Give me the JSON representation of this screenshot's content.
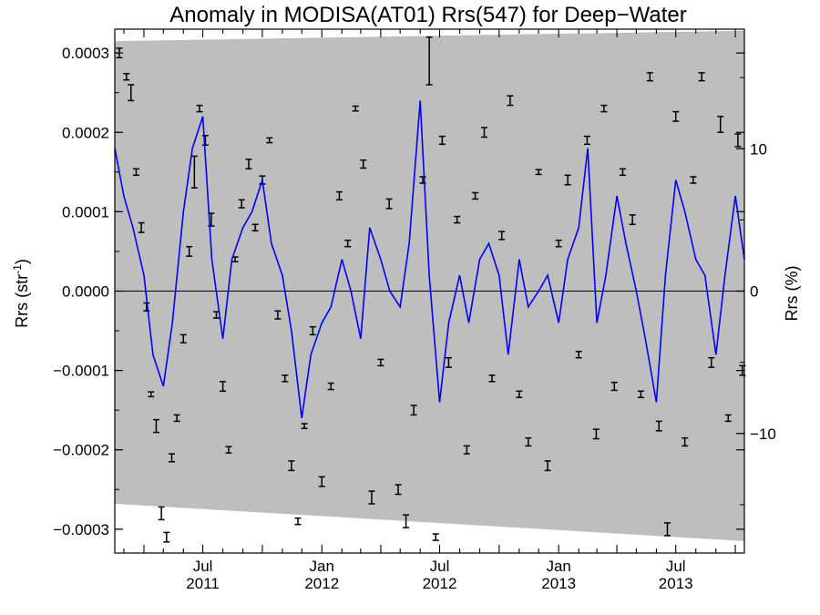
{
  "chart_data": {
    "type": "line",
    "title": "Anomaly in MODISA(AT01) Rrs(547) for Deep−Water",
    "ylabel_base": "Rrs (str",
    "ylabel_sup": "-1",
    "ylabel_close": ")",
    "y2label": "Rrs (%)",
    "xlim": [
      "2011-02-15",
      "2013-10-15"
    ],
    "ylim": [
      -0.00033,
      0.00033
    ],
    "y2lim": [
      -18.4,
      18.4
    ],
    "y_ticks": [
      {
        "value": 0.0003,
        "label": "0.0003"
      },
      {
        "value": 0.0002,
        "label": "0.0002"
      },
      {
        "value": 0.0001,
        "label": "0.0001"
      },
      {
        "value": 0.0,
        "label": "0.0000"
      },
      {
        "value": -0.0001,
        "label": "−0.0001"
      },
      {
        "value": -0.0002,
        "label": "−0.0002"
      },
      {
        "value": -0.0003,
        "label": "−0.0003"
      }
    ],
    "y2_ticks": [
      {
        "value": 10,
        "label": "10"
      },
      {
        "value": 0,
        "label": "0"
      },
      {
        "value": -10,
        "label": "−10"
      }
    ],
    "x_ticks": [
      {
        "date": "2011-07-01",
        "line1": "Jul",
        "line2": "2011"
      },
      {
        "date": "2012-01-01",
        "line1": "Jan",
        "line2": "2012"
      },
      {
        "date": "2012-07-01",
        "line1": "Jul",
        "line2": "2012"
      },
      {
        "date": "2013-01-01",
        "line1": "Jan",
        "line2": "2013"
      },
      {
        "date": "2013-07-01",
        "line1": "Jul",
        "line2": "2013"
      }
    ],
    "envelope": {
      "upper": [
        [
          "2011-02-15",
          0.000315
        ],
        [
          "2013-10-15",
          0.000328
        ]
      ],
      "lower": [
        [
          "2011-02-15",
          -0.000268
        ],
        [
          "2013-10-15",
          -0.000315
        ]
      ],
      "color": "#bebebe"
    },
    "series": [
      {
        "kind": "line",
        "color": "#0000ff",
        "x": [
          "2011-02-15",
          "2011-03-01",
          "2011-03-15",
          "2011-04-01",
          "2011-04-15",
          "2011-05-01",
          "2011-05-15",
          "2011-06-01",
          "2011-06-15",
          "2011-07-01",
          "2011-07-15",
          "2011-08-01",
          "2011-08-15",
          "2011-09-01",
          "2011-09-15",
          "2011-10-01",
          "2011-10-15",
          "2011-11-01",
          "2011-11-15",
          "2011-12-01",
          "2011-12-15",
          "2012-01-01",
          "2012-01-15",
          "2012-02-01",
          "2012-02-15",
          "2012-03-01",
          "2012-03-15",
          "2012-04-01",
          "2012-04-15",
          "2012-05-01",
          "2012-05-15",
          "2012-06-01",
          "2012-06-15",
          "2012-07-01",
          "2012-07-15",
          "2012-08-01",
          "2012-08-15",
          "2012-09-01",
          "2012-09-15",
          "2012-10-01",
          "2012-10-15",
          "2012-11-01",
          "2012-11-15",
          "2012-12-01",
          "2012-12-15",
          "2013-01-01",
          "2013-01-15",
          "2013-02-01",
          "2013-02-15",
          "2013-03-01",
          "2013-03-15",
          "2013-04-01",
          "2013-04-15",
          "2013-05-01",
          "2013-05-15",
          "2013-06-01",
          "2013-06-15",
          "2013-07-01",
          "2013-07-15",
          "2013-08-01",
          "2013-08-15",
          "2013-09-01",
          "2013-09-15",
          "2013-10-01",
          "2013-10-15"
        ],
        "y": [
          0.00018,
          0.00012,
          8e-05,
          2e-05,
          -8e-05,
          -0.00012,
          -4e-05,
          0.0001,
          0.00018,
          0.00022,
          4e-05,
          -6e-05,
          4e-05,
          8e-05,
          0.0001,
          0.00014,
          6e-05,
          2e-05,
          -5e-05,
          -0.00016,
          -8e-05,
          -4e-05,
          -2e-05,
          4e-05,
          0.0,
          -6e-05,
          8e-05,
          4e-05,
          0.0,
          -2e-05,
          6e-05,
          0.00024,
          2e-05,
          -0.00014,
          -4e-05,
          2e-05,
          -4e-05,
          4e-05,
          6e-05,
          2e-05,
          -8e-05,
          4e-05,
          -2e-05,
          0.0,
          2e-05,
          -4e-05,
          4e-05,
          8e-05,
          0.00018,
          -4e-05,
          2e-05,
          0.00012,
          6e-05,
          0.0,
          -6e-05,
          -0.00014,
          2e-05,
          0.00014,
          0.0001,
          4e-05,
          2e-05,
          -8e-05,
          2e-05,
          0.00012,
          4e-05
        ]
      },
      {
        "kind": "errorbar",
        "color": "#000000",
        "points": [
          [
            "2011-02-22",
            0.0003,
            6e-06
          ],
          [
            "2011-03-05",
            0.00027,
            4e-06
          ],
          [
            "2011-03-12",
            0.00025,
            1e-05
          ],
          [
            "2011-03-20",
            0.00015,
            4e-06
          ],
          [
            "2011-03-28",
            8e-05,
            6e-06
          ],
          [
            "2011-04-05",
            -2e-05,
            5e-06
          ],
          [
            "2011-04-12",
            -0.00013,
            3e-06
          ],
          [
            "2011-04-20",
            -0.00017,
            8e-06
          ],
          [
            "2011-04-28",
            -0.00028,
            8e-06
          ],
          [
            "2011-05-06",
            -0.00031,
            6e-06
          ],
          [
            "2011-05-14",
            -0.00021,
            5e-06
          ],
          [
            "2011-05-22",
            -0.00016,
            4e-06
          ],
          [
            "2011-06-01",
            -6e-05,
            5e-06
          ],
          [
            "2011-06-10",
            5e-05,
            6e-06
          ],
          [
            "2011-06-18",
            0.00015,
            2e-05
          ],
          [
            "2011-06-26",
            0.00023,
            4e-06
          ],
          [
            "2011-07-05",
            0.00019,
            6e-06
          ],
          [
            "2011-07-14",
            9e-05,
            8e-06
          ],
          [
            "2011-07-22",
            -3e-05,
            4e-06
          ],
          [
            "2011-08-01",
            -0.00012,
            6e-06
          ],
          [
            "2011-08-10",
            -0.0002,
            4e-06
          ],
          [
            "2011-08-20",
            4e-05,
            3e-06
          ],
          [
            "2011-08-30",
            0.00011,
            5e-06
          ],
          [
            "2011-09-10",
            0.00016,
            6e-06
          ],
          [
            "2011-09-20",
            8e-05,
            4e-06
          ],
          [
            "2011-10-01",
            0.00014,
            5e-06
          ],
          [
            "2011-10-12",
            0.00019,
            3e-06
          ],
          [
            "2011-10-25",
            -3e-05,
            5e-06
          ],
          [
            "2011-11-05",
            -0.00011,
            4e-06
          ],
          [
            "2011-11-15",
            -0.00022,
            6e-06
          ],
          [
            "2011-11-25",
            -0.00029,
            4e-06
          ],
          [
            "2011-12-05",
            -0.00017,
            3e-06
          ],
          [
            "2011-12-18",
            -5e-05,
            5e-06
          ],
          [
            "2012-01-01",
            -0.00024,
            6e-06
          ],
          [
            "2012-01-15",
            -0.00012,
            4e-06
          ],
          [
            "2012-01-28",
            0.00012,
            5e-06
          ],
          [
            "2012-02-10",
            6e-05,
            4e-06
          ],
          [
            "2012-02-22",
            0.00023,
            3e-06
          ],
          [
            "2012-03-05",
            0.00016,
            5e-06
          ],
          [
            "2012-03-18",
            -0.00026,
            8e-06
          ],
          [
            "2012-04-01",
            -9e-05,
            4e-06
          ],
          [
            "2012-04-14",
            0.00011,
            6e-06
          ],
          [
            "2012-04-28",
            -0.00025,
            6e-06
          ],
          [
            "2012-05-10",
            -0.00029,
            8e-06
          ],
          [
            "2012-05-22",
            -0.00015,
            6e-06
          ],
          [
            "2012-06-05",
            0.00014,
            4e-06
          ],
          [
            "2012-06-15",
            0.00029,
            3e-05
          ],
          [
            "2012-06-25",
            -0.00031,
            4e-06
          ],
          [
            "2012-07-05",
            0.00019,
            5e-06
          ],
          [
            "2012-07-15",
            -9e-05,
            6e-06
          ],
          [
            "2012-07-28",
            9e-05,
            4e-06
          ],
          [
            "2012-08-12",
            -0.0002,
            5e-06
          ],
          [
            "2012-08-25",
            0.00012,
            4e-06
          ],
          [
            "2012-09-08",
            0.0002,
            6e-06
          ],
          [
            "2012-09-20",
            -0.00011,
            4e-06
          ],
          [
            "2012-10-05",
            7e-05,
            5e-06
          ],
          [
            "2012-10-18",
            0.00024,
            6e-06
          ],
          [
            "2012-11-01",
            -0.00013,
            4e-06
          ],
          [
            "2012-11-15",
            -0.00019,
            5e-06
          ],
          [
            "2012-12-01",
            0.00015,
            3e-06
          ],
          [
            "2012-12-15",
            -0.00022,
            6e-06
          ],
          [
            "2013-01-01",
            6e-05,
            4e-06
          ],
          [
            "2013-01-15",
            0.00014,
            6e-06
          ],
          [
            "2013-02-01",
            -8e-05,
            4e-06
          ],
          [
            "2013-02-14",
            0.00019,
            5e-06
          ],
          [
            "2013-02-28",
            -0.00018,
            6e-06
          ],
          [
            "2013-03-12",
            0.00023,
            4e-06
          ],
          [
            "2013-03-28",
            -0.00012,
            5e-06
          ],
          [
            "2013-04-10",
            0.00015,
            4e-06
          ],
          [
            "2013-04-25",
            9e-05,
            6e-06
          ],
          [
            "2013-05-08",
            -0.00013,
            4e-06
          ],
          [
            "2013-05-22",
            0.00027,
            5e-06
          ],
          [
            "2013-06-05",
            -0.00017,
            6e-06
          ],
          [
            "2013-06-18",
            -0.0003,
            8e-06
          ],
          [
            "2013-07-01",
            0.00022,
            6e-06
          ],
          [
            "2013-07-15",
            -0.00019,
            5e-06
          ],
          [
            "2013-07-28",
            0.00014,
            4e-06
          ],
          [
            "2013-08-10",
            0.00027,
            5e-06
          ],
          [
            "2013-08-25",
            -9e-05,
            6e-06
          ],
          [
            "2013-09-08",
            0.00021,
            1e-05
          ],
          [
            "2013-09-20",
            -0.00016,
            4e-06
          ],
          [
            "2013-10-05",
            0.00019,
            8e-06
          ],
          [
            "2013-10-12",
            -0.0001,
            6e-06
          ]
        ]
      }
    ],
    "grid": false,
    "legend": "none",
    "zero_line": true
  }
}
